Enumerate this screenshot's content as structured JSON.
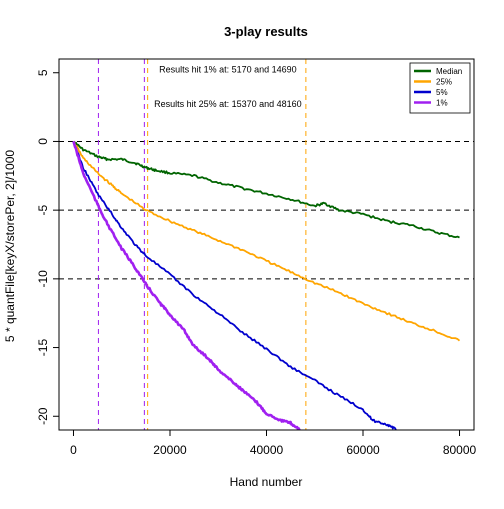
{
  "chart_data": {
    "type": "line",
    "title": "3-play results",
    "xlabel": "Hand number",
    "ylabel": "5 * quantFile[keyX/storePer, 2]/1000",
    "xlim": [
      -3000,
      83000
    ],
    "ylim": [
      -21,
      6
    ],
    "x_ticks": [
      0,
      20000,
      40000,
      60000,
      80000
    ],
    "x_tick_labels": [
      "0",
      "20000",
      "40000",
      "60000",
      "80000"
    ],
    "y_ticks": [
      5,
      0,
      -5,
      -10,
      -15,
      -20
    ],
    "y_tick_labels": [
      "5",
      "0",
      "-5",
      "-10",
      "-15",
      "-20"
    ],
    "grid": false,
    "legend_position": "top-right",
    "series": [
      {
        "name": "Median",
        "color": "#006400",
        "x": [
          0,
          2000,
          5000,
          7000,
          10000,
          13000,
          15000,
          17000,
          20000,
          25000,
          30000,
          35000,
          40000,
          45000,
          50000,
          52000,
          55000,
          60000,
          65000,
          70000,
          75000,
          80000
        ],
        "y": [
          0,
          -0.6,
          -1.1,
          -1.3,
          -1.3,
          -1.6,
          -1.9,
          -2.1,
          -2.3,
          -2.5,
          -3.0,
          -3.4,
          -3.8,
          -4.2,
          -4.7,
          -4.5,
          -5.0,
          -5.3,
          -5.8,
          -6.1,
          -6.6,
          -7.0
        ]
      },
      {
        "name": "25%",
        "color": "#FFA500",
        "x": [
          0,
          2000,
          5000,
          8000,
          10000,
          15000,
          20000,
          25000,
          30000,
          35000,
          40000,
          45000,
          50000,
          55000,
          60000,
          65000,
          70000,
          75000,
          80000
        ],
        "y": [
          0,
          -1.2,
          -2.3,
          -3.2,
          -3.8,
          -5.0,
          -5.8,
          -6.5,
          -7.2,
          -7.9,
          -8.7,
          -9.5,
          -10.3,
          -11.0,
          -11.8,
          -12.5,
          -13.2,
          -13.8,
          -14.5
        ]
      },
      {
        "name": "5%",
        "color": "#0000CD",
        "x": [
          0,
          2000,
          5000,
          8000,
          10000,
          13000,
          15000,
          20000,
          25000,
          30000,
          35000,
          40000,
          45000,
          50000,
          55000,
          60000,
          62000,
          65000,
          67000
        ],
        "y": [
          0,
          -1.9,
          -3.8,
          -5.3,
          -6.3,
          -7.6,
          -8.3,
          -9.7,
          -11.2,
          -12.5,
          -13.9,
          -15.1,
          -16.4,
          -17.4,
          -18.5,
          -19.5,
          -20.3,
          -20.6,
          -21.0
        ]
      },
      {
        "name": "1%",
        "color": "#A020F0",
        "x": [
          0,
          2000,
          5000,
          7000,
          10000,
          13000,
          15000,
          18000,
          20000,
          23000,
          25000,
          28000,
          30000,
          33000,
          35000,
          38000,
          40000,
          43000,
          45000,
          47000
        ],
        "y": [
          0,
          -2.3,
          -4.6,
          -6.0,
          -7.8,
          -9.3,
          -10.4,
          -11.8,
          -12.6,
          -13.8,
          -14.9,
          -15.8,
          -16.6,
          -17.5,
          -18.1,
          -19.0,
          -19.8,
          -20.3,
          -20.5,
          -21.0
        ]
      }
    ],
    "horizontal_lines": [
      {
        "y": 0,
        "style": "dashed",
        "color": "#000000"
      },
      {
        "y": -5,
        "style": "dashed",
        "color": "#000000"
      },
      {
        "y": -10,
        "style": "dashed",
        "color": "#000000"
      }
    ],
    "vertical_lines": [
      {
        "x": 5170,
        "color": "#A020F0"
      },
      {
        "x": 14690,
        "color": "#A020F0"
      },
      {
        "x": 15370,
        "color": "#FFA500"
      },
      {
        "x": 48160,
        "color": "#FFA500"
      }
    ],
    "annotations": [
      {
        "text": "Results hit 1% at: 5170 and 14690",
        "x": 32000,
        "y": 5.0
      },
      {
        "text": "Results hit 25% at: 15370 and 48160",
        "x": 32000,
        "y": 2.5
      }
    ]
  }
}
